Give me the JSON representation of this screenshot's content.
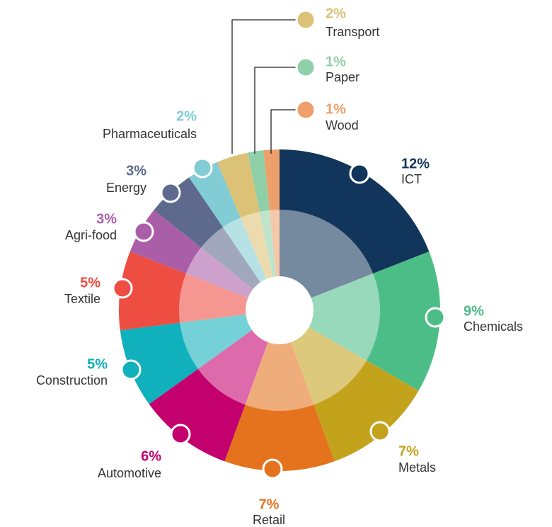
{
  "chart_data": {
    "type": "donut",
    "categories": [
      "ICT",
      "Chemicals",
      "Metals",
      "Retail",
      "Automotive",
      "Construction",
      "Textile",
      "Agri-food",
      "Energy",
      "Pharmaceuticals",
      "Transport",
      "Paper",
      "Wood"
    ],
    "values": [
      12,
      9,
      7,
      7,
      6,
      5,
      5,
      3,
      3,
      2,
      2,
      1,
      1
    ],
    "value_labels": [
      "12%",
      "9%",
      "7%",
      "7%",
      "6%",
      "5%",
      "5%",
      "3%",
      "3%",
      "2%",
      "2%",
      "1%",
      "1%"
    ],
    "colors": [
      "#12355b",
      "#4dbd88",
      "#c4a31c",
      "#e5731e",
      "#c4006f",
      "#10b0bc",
      "#ee4d41",
      "#ab5ea8",
      "#5d6a8e",
      "#82cdd5",
      "#dcc276",
      "#8fd0a8",
      "#eda06b"
    ]
  }
}
